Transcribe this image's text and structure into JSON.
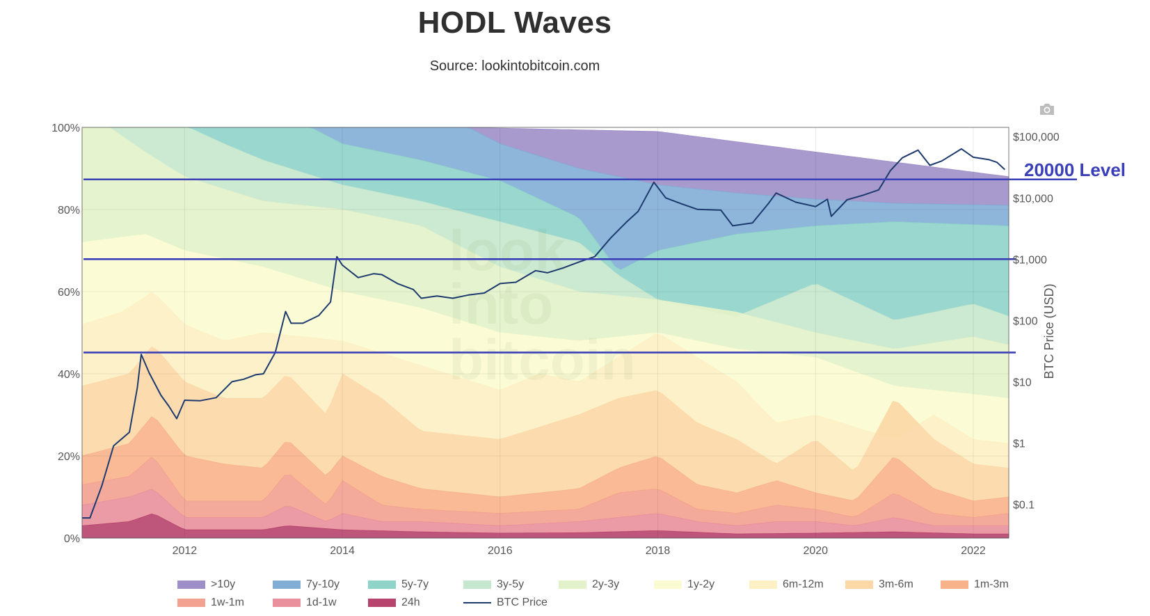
{
  "title": "HODL Waves",
  "subtitle": "Source: lookintobitcoin.com",
  "watermark": [
    "look",
    "into",
    "bitcoin"
  ],
  "annotation": "20000 Level",
  "chart_data": {
    "type": "area",
    "x_range": [
      2010.7,
      2022.45
    ],
    "x_ticks": [
      {
        "x": 2012,
        "label": "2012"
      },
      {
        "x": 2014,
        "label": "2014"
      },
      {
        "x": 2016,
        "label": "2016"
      },
      {
        "x": 2018,
        "label": "2018"
      },
      {
        "x": 2020,
        "label": "2020"
      },
      {
        "x": 2022,
        "label": "2022"
      }
    ],
    "y_left": {
      "range": [
        0,
        100
      ],
      "ticks": [
        {
          "v": 0,
          "label": "0%"
        },
        {
          "v": 20,
          "label": "20%"
        },
        {
          "v": 40,
          "label": "40%"
        },
        {
          "v": 60,
          "label": "60%"
        },
        {
          "v": 80,
          "label": "80%"
        },
        {
          "v": 100,
          "label": "100%"
        }
      ]
    },
    "y_right": {
      "label": "BTC Price (USD)",
      "scale": "log",
      "range_log10": [
        -1.55,
        5.15
      ],
      "ticks": [
        {
          "v": -1,
          "label": "$0.1"
        },
        {
          "v": 0,
          "label": "$1"
        },
        {
          "v": 1,
          "label": "$10"
        },
        {
          "v": 2,
          "label": "$100"
        },
        {
          "v": 3,
          "label": "$1,000"
        },
        {
          "v": 4,
          "label": "$10,000"
        },
        {
          "v": 5,
          "label": "$100,000"
        }
      ]
    },
    "series": [
      {
        "name": ">10y",
        "color": "#9e8fc8",
        "boundary": [
          [
            2010.7,
            100
          ],
          [
            2015.6,
            100
          ],
          [
            2016,
            99.8
          ],
          [
            2018,
            99
          ],
          [
            2020,
            94
          ],
          [
            2022.45,
            88
          ]
        ]
      },
      {
        "name": "7y-10y",
        "color": "#82aed6",
        "boundary": [
          [
            2010.7,
            100
          ],
          [
            2015.6,
            100
          ],
          [
            2016,
            96
          ],
          [
            2017,
            90
          ],
          [
            2018,
            86
          ],
          [
            2019,
            84
          ],
          [
            2020,
            82.5
          ],
          [
            2021,
            81.5
          ],
          [
            2022.45,
            81
          ]
        ]
      },
      {
        "name": "5y-7y",
        "color": "#8fd3c9",
        "boundary": [
          [
            2010.7,
            100
          ],
          [
            2013.6,
            100
          ],
          [
            2014,
            96
          ],
          [
            2015,
            92
          ],
          [
            2016,
            87
          ],
          [
            2017,
            78
          ],
          [
            2017.5,
            65
          ],
          [
            2018,
            70
          ],
          [
            2019,
            74
          ],
          [
            2020,
            76
          ],
          [
            2021,
            77
          ],
          [
            2022.45,
            76
          ]
        ]
      },
      {
        "name": "3y-5y",
        "color": "#c6e7cd",
        "boundary": [
          [
            2010.7,
            100
          ],
          [
            2012.05,
            100
          ],
          [
            2012.5,
            96
          ],
          [
            2013,
            92
          ],
          [
            2014,
            86
          ],
          [
            2015,
            82
          ],
          [
            2016,
            77
          ],
          [
            2017,
            72
          ],
          [
            2017.5,
            64
          ],
          [
            2018,
            58
          ],
          [
            2019,
            54
          ],
          [
            2020,
            62
          ],
          [
            2021,
            53
          ],
          [
            2022,
            57
          ],
          [
            2022.45,
            54
          ]
        ]
      },
      {
        "name": "2y-3y",
        "color": "#e3f2ca",
        "boundary": [
          [
            2010.7,
            100
          ],
          [
            2011.05,
            100
          ],
          [
            2011.5,
            94
          ],
          [
            2012,
            88
          ],
          [
            2013,
            82
          ],
          [
            2014,
            80
          ],
          [
            2015,
            76
          ],
          [
            2016,
            66
          ],
          [
            2016.5,
            63
          ],
          [
            2017,
            60
          ],
          [
            2018,
            58
          ],
          [
            2019,
            55
          ],
          [
            2020,
            50
          ],
          [
            2021,
            46
          ],
          [
            2022,
            49
          ],
          [
            2022.45,
            47
          ]
        ]
      },
      {
        "name": "1y-2y",
        "color": "#fbfbd2",
        "boundary": [
          [
            2010.7,
            72
          ],
          [
            2011.5,
            74
          ],
          [
            2012,
            70
          ],
          [
            2013,
            66
          ],
          [
            2014,
            60
          ],
          [
            2015,
            56
          ],
          [
            2016,
            50
          ],
          [
            2017,
            48
          ],
          [
            2018,
            50
          ],
          [
            2019,
            46
          ],
          [
            2020,
            44
          ],
          [
            2021,
            37
          ],
          [
            2022,
            35
          ],
          [
            2022.45,
            34
          ]
        ]
      },
      {
        "name": "6m-12m",
        "color": "#fdf0c4",
        "boundary": [
          [
            2010.7,
            52
          ],
          [
            2011.2,
            55
          ],
          [
            2011.6,
            60
          ],
          [
            2012,
            52
          ],
          [
            2012.5,
            48
          ],
          [
            2013,
            50
          ],
          [
            2014,
            48
          ],
          [
            2015,
            42
          ],
          [
            2016,
            36
          ],
          [
            2016.5,
            40
          ],
          [
            2017,
            38
          ],
          [
            2018,
            50
          ],
          [
            2018.5,
            44
          ],
          [
            2019,
            38
          ],
          [
            2019.5,
            28
          ],
          [
            2020,
            30
          ],
          [
            2021,
            24
          ],
          [
            2021.5,
            30
          ],
          [
            2022,
            24
          ],
          [
            2022.45,
            23
          ]
        ]
      },
      {
        "name": "3m-6m",
        "color": "#fcd8a6",
        "boundary": [
          [
            2010.7,
            37
          ],
          [
            2011.3,
            40
          ],
          [
            2011.6,
            47
          ],
          [
            2012,
            38
          ],
          [
            2012.5,
            34
          ],
          [
            2013,
            34
          ],
          [
            2013.3,
            40
          ],
          [
            2013.8,
            30
          ],
          [
            2014,
            40
          ],
          [
            2014.5,
            34
          ],
          [
            2015,
            26
          ],
          [
            2016,
            24
          ],
          [
            2017,
            30
          ],
          [
            2017.5,
            34
          ],
          [
            2018,
            36
          ],
          [
            2018.5,
            28
          ],
          [
            2019,
            24
          ],
          [
            2019.5,
            18
          ],
          [
            2020,
            24
          ],
          [
            2020.5,
            16
          ],
          [
            2021,
            34
          ],
          [
            2021.5,
            24
          ],
          [
            2022,
            18
          ],
          [
            2022.45,
            17
          ]
        ]
      },
      {
        "name": "1m-3m",
        "color": "#f8b38a",
        "boundary": [
          [
            2010.7,
            20
          ],
          [
            2011.3,
            23
          ],
          [
            2011.6,
            30
          ],
          [
            2012,
            20
          ],
          [
            2012.5,
            18
          ],
          [
            2013,
            17
          ],
          [
            2013.3,
            24
          ],
          [
            2013.8,
            15
          ],
          [
            2014,
            20
          ],
          [
            2014.5,
            15
          ],
          [
            2015,
            12
          ],
          [
            2016,
            10
          ],
          [
            2017,
            12
          ],
          [
            2017.5,
            17
          ],
          [
            2018,
            20
          ],
          [
            2018.5,
            13
          ],
          [
            2019,
            11
          ],
          [
            2019.5,
            14
          ],
          [
            2020,
            11
          ],
          [
            2020.5,
            9
          ],
          [
            2021,
            20
          ],
          [
            2021.5,
            12
          ],
          [
            2022,
            9
          ],
          [
            2022.45,
            10
          ]
        ]
      },
      {
        "name": "1w-1m",
        "color": "#f3a190",
        "boundary": [
          [
            2010.7,
            13
          ],
          [
            2011.3,
            15
          ],
          [
            2011.6,
            20
          ],
          [
            2012,
            9
          ],
          [
            2013,
            9
          ],
          [
            2013.3,
            16
          ],
          [
            2013.8,
            8
          ],
          [
            2014,
            14
          ],
          [
            2014.5,
            8
          ],
          [
            2015,
            7
          ],
          [
            2016,
            6
          ],
          [
            2017,
            7
          ],
          [
            2017.5,
            11
          ],
          [
            2018,
            12
          ],
          [
            2018.5,
            7
          ],
          [
            2019,
            6
          ],
          [
            2019.5,
            8
          ],
          [
            2020,
            7
          ],
          [
            2020.5,
            5
          ],
          [
            2021,
            11
          ],
          [
            2021.5,
            6
          ],
          [
            2022,
            5
          ],
          [
            2022.45,
            6
          ]
        ]
      },
      {
        "name": "1d-1w",
        "color": "#e9909c",
        "boundary": [
          [
            2010.7,
            8
          ],
          [
            2011.3,
            10
          ],
          [
            2011.6,
            12
          ],
          [
            2012,
            5
          ],
          [
            2013,
            5
          ],
          [
            2013.3,
            8
          ],
          [
            2013.8,
            4
          ],
          [
            2014,
            6
          ],
          [
            2014.5,
            4
          ],
          [
            2015,
            4
          ],
          [
            2016,
            3
          ],
          [
            2017,
            4
          ],
          [
            2017.5,
            5
          ],
          [
            2018,
            6
          ],
          [
            2018.5,
            4
          ],
          [
            2019,
            3
          ],
          [
            2019.5,
            4
          ],
          [
            2020,
            4
          ],
          [
            2020.5,
            3
          ],
          [
            2021,
            5
          ],
          [
            2021.5,
            3
          ],
          [
            2022,
            3
          ],
          [
            2022.45,
            3
          ]
        ]
      },
      {
        "name": "24h",
        "color": "#b7446d",
        "boundary": [
          [
            2010.7,
            3
          ],
          [
            2011.3,
            4
          ],
          [
            2011.6,
            6
          ],
          [
            2012,
            2
          ],
          [
            2013,
            2
          ],
          [
            2013.3,
            3
          ],
          [
            2014,
            2
          ],
          [
            2015,
            1.5
          ],
          [
            2016,
            1.2
          ],
          [
            2017,
            1.3
          ],
          [
            2018,
            1.8
          ],
          [
            2019,
            1
          ],
          [
            2020,
            1.2
          ],
          [
            2021,
            1.5
          ],
          [
            2022,
            1
          ],
          [
            2022.45,
            1
          ]
        ]
      },
      {
        "name": "BTC Price",
        "type": "line",
        "color": "#1c3a6e",
        "scale": "log",
        "points": [
          [
            2010.7,
            0.06
          ],
          [
            2010.8,
            0.06
          ],
          [
            2010.95,
            0.2
          ],
          [
            2011.1,
            0.9
          ],
          [
            2011.3,
            1.5
          ],
          [
            2011.4,
            8
          ],
          [
            2011.45,
            28
          ],
          [
            2011.55,
            14
          ],
          [
            2011.7,
            6
          ],
          [
            2011.8,
            4
          ],
          [
            2011.9,
            2.5
          ],
          [
            2012.0,
            5
          ],
          [
            2012.2,
            4.9
          ],
          [
            2012.4,
            5.5
          ],
          [
            2012.6,
            10
          ],
          [
            2012.75,
            11
          ],
          [
            2012.9,
            13
          ],
          [
            2013.0,
            13.5
          ],
          [
            2013.15,
            30
          ],
          [
            2013.28,
            140
          ],
          [
            2013.35,
            90
          ],
          [
            2013.5,
            90
          ],
          [
            2013.7,
            120
          ],
          [
            2013.85,
            200
          ],
          [
            2013.93,
            1100
          ],
          [
            2014.0,
            800
          ],
          [
            2014.2,
            500
          ],
          [
            2014.4,
            580
          ],
          [
            2014.5,
            560
          ],
          [
            2014.7,
            400
          ],
          [
            2014.9,
            320
          ],
          [
            2015.0,
            230
          ],
          [
            2015.2,
            250
          ],
          [
            2015.4,
            230
          ],
          [
            2015.6,
            260
          ],
          [
            2015.8,
            280
          ],
          [
            2016.0,
            400
          ],
          [
            2016.2,
            420
          ],
          [
            2016.45,
            650
          ],
          [
            2016.6,
            600
          ],
          [
            2016.8,
            720
          ],
          [
            2017.0,
            900
          ],
          [
            2017.2,
            1100
          ],
          [
            2017.4,
            2200
          ],
          [
            2017.6,
            4000
          ],
          [
            2017.75,
            6000
          ],
          [
            2017.95,
            18000
          ],
          [
            2018.1,
            10000
          ],
          [
            2018.3,
            8000
          ],
          [
            2018.5,
            6500
          ],
          [
            2018.8,
            6300
          ],
          [
            2018.95,
            3500
          ],
          [
            2019.2,
            3900
          ],
          [
            2019.4,
            8000
          ],
          [
            2019.5,
            12000
          ],
          [
            2019.75,
            8500
          ],
          [
            2020.0,
            7200
          ],
          [
            2020.15,
            9500
          ],
          [
            2020.2,
            5000
          ],
          [
            2020.4,
            9300
          ],
          [
            2020.6,
            11000
          ],
          [
            2020.8,
            13500
          ],
          [
            2020.95,
            28000
          ],
          [
            2021.1,
            45000
          ],
          [
            2021.3,
            60000
          ],
          [
            2021.45,
            34000
          ],
          [
            2021.6,
            40000
          ],
          [
            2021.85,
            63000
          ],
          [
            2022.0,
            46000
          ],
          [
            2022.2,
            42000
          ],
          [
            2022.3,
            38000
          ],
          [
            2022.4,
            29000
          ]
        ]
      }
    ],
    "hlines_usd": [
      20000,
      1000,
      30
    ],
    "legend": [
      ">10y",
      "7y-10y",
      "5y-7y",
      "3y-5y",
      "2y-3y",
      "1y-2y",
      "6m-12m",
      "3m-6m",
      "1m-3m",
      "1w-1m",
      "1d-1w",
      "24h",
      "BTC Price"
    ]
  }
}
